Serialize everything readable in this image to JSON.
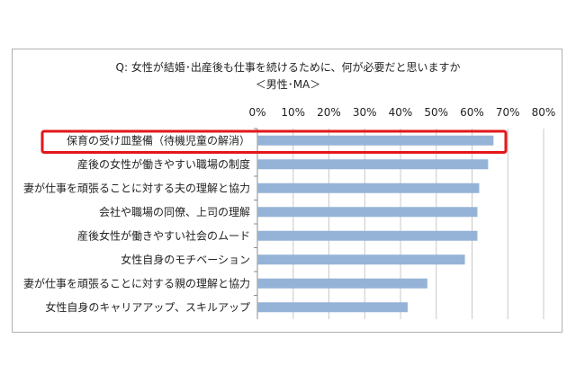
{
  "chart_data": {
    "type": "bar",
    "orientation": "horizontal",
    "title": "Q: 女性が結婚･出産後も仕事を続けるために、何が必要だと思いますか",
    "subtitle": "＜男性･MA＞",
    "categories": [
      "保育の受け皿整備（待機児童の解消）",
      "産後の女性が働きやすい職場の制度",
      "妻が仕事を頑張ることに対する夫の理解と協力",
      "会社や職場の同僚、上司の理解",
      "産後女性が働きやすい社会のムード",
      "女性自身のモチベーション",
      "妻が仕事を頑張ることに対する親の理解と協力",
      "女性自身のキャリアアップ、スキルアップ"
    ],
    "values": [
      66,
      64.5,
      62,
      61.5,
      61.5,
      58,
      47.5,
      42
    ],
    "xlim": [
      0,
      80
    ],
    "xticks": [
      "0%",
      "10%",
      "20%",
      "30%",
      "40%",
      "50%",
      "60%",
      "70%",
      "80%"
    ],
    "grid": true,
    "highlighted_category_index": 0,
    "colors": {
      "bar": "#95b3d7",
      "highlight": "#e3171b",
      "grid": "#c8c8c8"
    }
  }
}
